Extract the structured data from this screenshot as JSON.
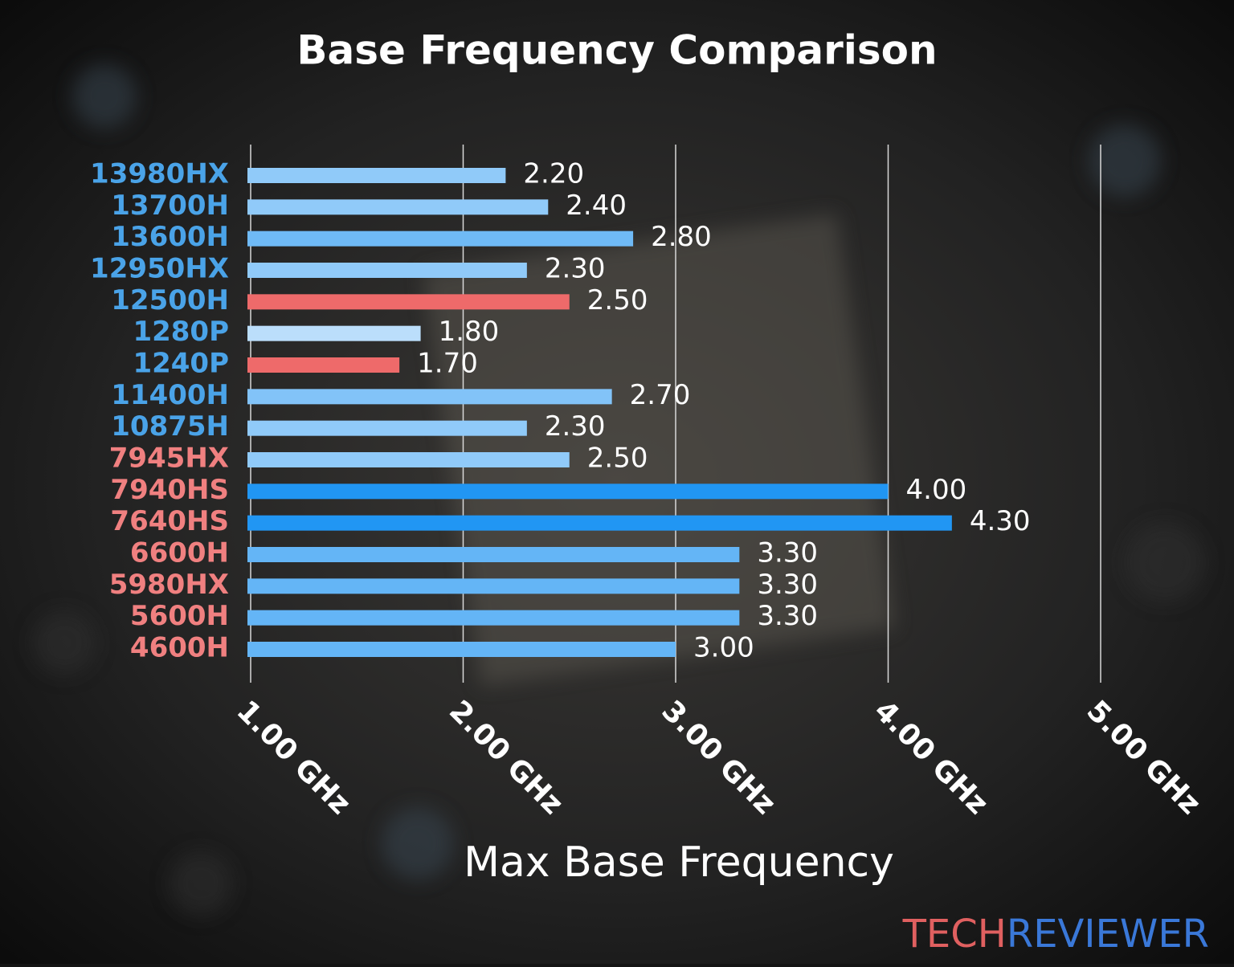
{
  "chart_data": {
    "type": "bar",
    "orientation": "horizontal",
    "title": "Base Frequency Comparison",
    "x_label": "Max Base Frequency",
    "categories": [
      "13980HX",
      "13700H",
      "13600H",
      "12950HX",
      "12500H",
      "1280P",
      "1240P",
      "11400H",
      "10875H",
      "7945HX",
      "7940HS",
      "7640HS",
      "6600H",
      "5980HX",
      "5600H",
      "4600H"
    ],
    "category_colors": [
      "#4aa3e8",
      "#4aa3e8",
      "#4aa3e8",
      "#4aa3e8",
      "#4aa3e8",
      "#4aa3e8",
      "#4aa3e8",
      "#4aa3e8",
      "#4aa3e8",
      "#f08080",
      "#f08080",
      "#f08080",
      "#f08080",
      "#f08080",
      "#f08080",
      "#f08080"
    ],
    "values": [
      2.2,
      2.4,
      2.8,
      2.3,
      2.5,
      1.8,
      1.7,
      2.7,
      2.3,
      2.5,
      4.0,
      4.3,
      3.3,
      3.3,
      3.3,
      3.0
    ],
    "value_labels": [
      "2.20",
      "2.40",
      "2.80",
      "2.30",
      "2.50",
      "1.80",
      "1.70",
      "2.70",
      "2.30",
      "2.50",
      "4.00",
      "4.30",
      "3.30",
      "3.30",
      "3.30",
      "3.00"
    ],
    "colors": [
      "#90caf9",
      "#90caf9",
      "#6fbaf6",
      "#90caf9",
      "#ee6a6a",
      "#bbdefb",
      "#ee6a6a",
      "#82c3f8",
      "#90caf9",
      "#90caf9",
      "#2196f3",
      "#2196f3",
      "#64b5f6",
      "#64b5f6",
      "#64b5f6",
      "#64b5f6"
    ],
    "xlim": [
      1,
      5
    ],
    "xticks": [
      {
        "value": 1,
        "label": "1.00 GHz"
      },
      {
        "value": 2,
        "label": "2.00 GHz"
      },
      {
        "value": 3,
        "label": "3.00 GHz"
      },
      {
        "value": 4,
        "label": "4.00 GHz"
      },
      {
        "value": 5,
        "label": "5.00 GHz"
      }
    ],
    "grid": true,
    "watermark": [
      "TECH",
      "REVIEWER"
    ],
    "watermark_colors": [
      "#e06060",
      "#3a78d8"
    ]
  }
}
